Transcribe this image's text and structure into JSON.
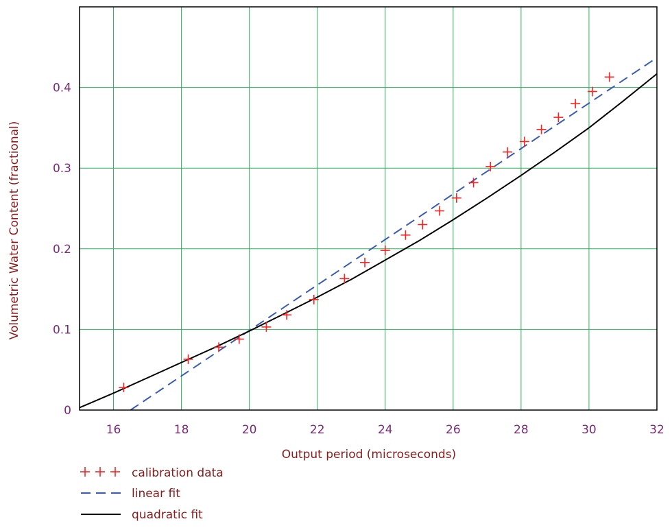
{
  "chart_data": {
    "type": "scatter",
    "title": "",
    "xlabel": "Output period (microseconds)",
    "ylabel": "Volumetric Water Content (fractional)",
    "xlim": [
      15,
      32
    ],
    "ylim": [
      0,
      0.5
    ],
    "xticks": [
      16,
      18,
      20,
      22,
      24,
      26,
      28,
      30,
      32
    ],
    "yticks": [
      0,
      0.1,
      0.2,
      0.3,
      0.4
    ],
    "ytick_labels": [
      "0",
      "0.1",
      "0.2",
      "0.3",
      "0.4"
    ],
    "grid": true,
    "grid_color": "#2db35a",
    "legend_position": "bottom-left",
    "series": [
      {
        "name": "calibration data",
        "kind": "markers",
        "marker": "+",
        "color": "#ff2020",
        "x": [
          16.3,
          18.2,
          19.1,
          19.7,
          20.5,
          21.1,
          21.9,
          22.8,
          23.4,
          24.0,
          24.6,
          25.1,
          25.6,
          26.1,
          26.6,
          27.1,
          27.6,
          28.1,
          28.6,
          29.1,
          29.6,
          30.1,
          30.6
        ],
        "y": [
          0.028,
          0.063,
          0.078,
          0.088,
          0.103,
          0.118,
          0.137,
          0.163,
          0.183,
          0.198,
          0.217,
          0.23,
          0.247,
          0.263,
          0.282,
          0.302,
          0.32,
          0.333,
          0.348,
          0.363,
          0.38,
          0.395,
          0.413
        ]
      },
      {
        "name": "linear fit",
        "kind": "line",
        "dash": "dashed",
        "color": "#3a5bb5",
        "x": [
          16.5,
          32
        ],
        "y": [
          0.0,
          0.437
        ]
      },
      {
        "name": "quadratic fit",
        "kind": "line",
        "dash": "solid",
        "color": "#000000",
        "x": [
          15,
          16,
          17,
          18,
          19,
          20,
          21,
          22,
          23,
          24,
          25,
          26,
          27,
          28,
          29,
          30,
          31,
          32
        ],
        "y": [
          0.003,
          0.021,
          0.04,
          0.059,
          0.078,
          0.098,
          0.119,
          0.14,
          0.162,
          0.186,
          0.21,
          0.236,
          0.263,
          0.291,
          0.32,
          0.35,
          0.383,
          0.417
        ]
      }
    ]
  }
}
